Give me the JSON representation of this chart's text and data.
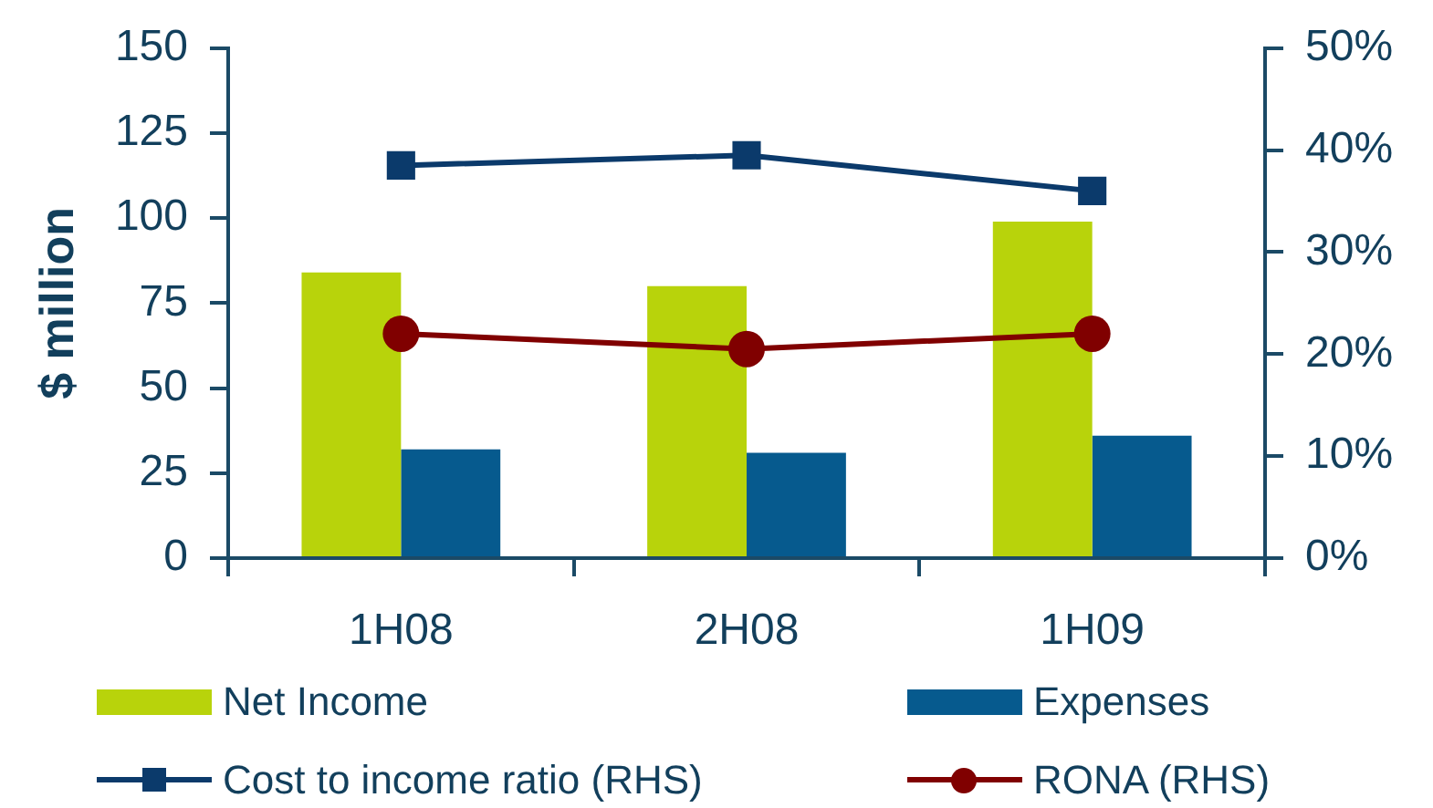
{
  "chart_data": {
    "type": "bar",
    "ylabel": "$ million",
    "categories": [
      "1H08",
      "2H08",
      "1H09"
    ],
    "series": [
      {
        "name": "Net Income",
        "color": "#b8d30b",
        "values": [
          84,
          80,
          99
        ]
      },
      {
        "name": "Expenses",
        "color": "#065a8e",
        "values": [
          32,
          31,
          36
        ]
      },
      {
        "name": "Cost to income ratio (RHS)",
        "type": "line",
        "axis": "y2",
        "marker": "square",
        "color": "#0b3a6b",
        "values": [
          38.5,
          39.5,
          36
        ]
      },
      {
        "name": "RONA (RHS)",
        "type": "line",
        "axis": "y2",
        "marker": "circle",
        "color": "#800000",
        "values": [
          22,
          20.5,
          22
        ]
      }
    ],
    "ylim": [
      0,
      150
    ],
    "yticks": [
      0,
      25,
      50,
      75,
      100,
      125,
      150
    ],
    "y2lim": [
      0,
      50
    ],
    "y2ticks": [
      {
        "value": 0,
        "label": "0%"
      },
      {
        "value": 10,
        "label": "10%"
      },
      {
        "value": 20,
        "label": "20%"
      },
      {
        "value": 30,
        "label": "30%"
      },
      {
        "value": 40,
        "label": "40%"
      },
      {
        "value": 50,
        "label": "50%"
      }
    ],
    "grid": false,
    "legend": "bottom"
  }
}
